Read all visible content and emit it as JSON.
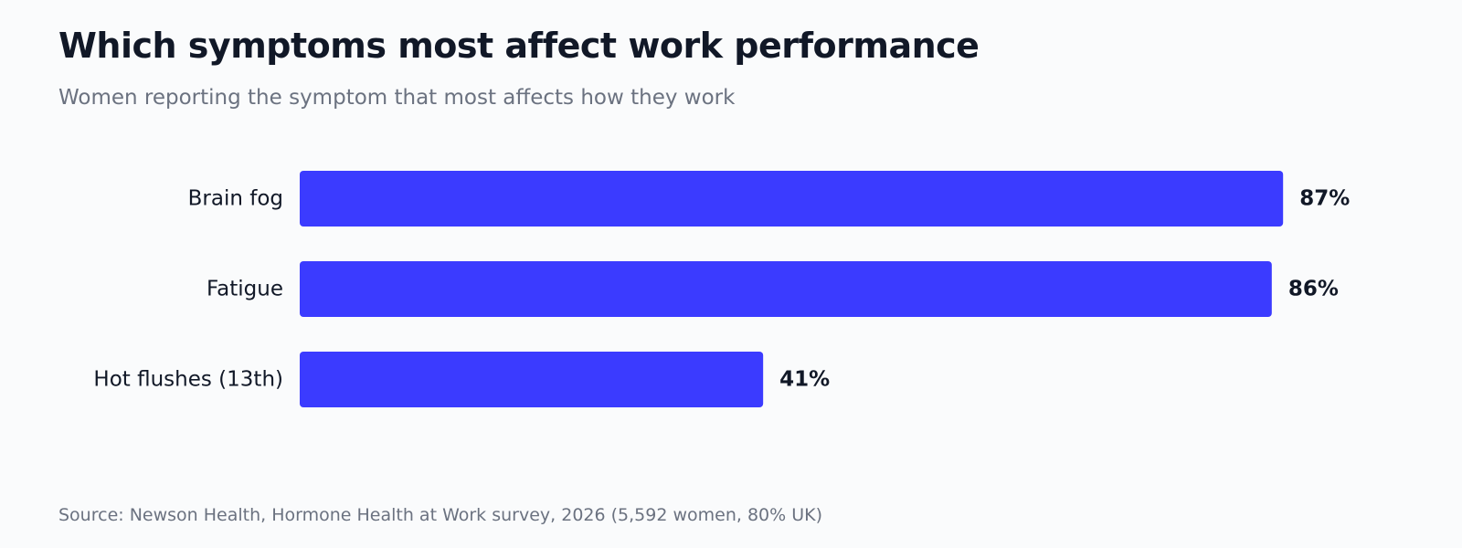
{
  "chart_data": {
    "type": "bar",
    "orientation": "horizontal",
    "title": "Which symptoms most affect work performance",
    "subtitle": "Women reporting the symptom that most affects how they work",
    "categories": [
      "Brain fog",
      "Fatigue",
      "Hot flushes (13th)"
    ],
    "values": [
      87,
      86,
      41
    ],
    "value_labels": [
      "87%",
      "86%",
      "41%"
    ],
    "xlim": [
      0,
      100
    ],
    "grid": false,
    "legend": "none",
    "bar_color": "#3b3bff",
    "source": "Source: Newson Health, Hormone Health at Work survey, 2026 (5,592 women, 80% UK)"
  }
}
